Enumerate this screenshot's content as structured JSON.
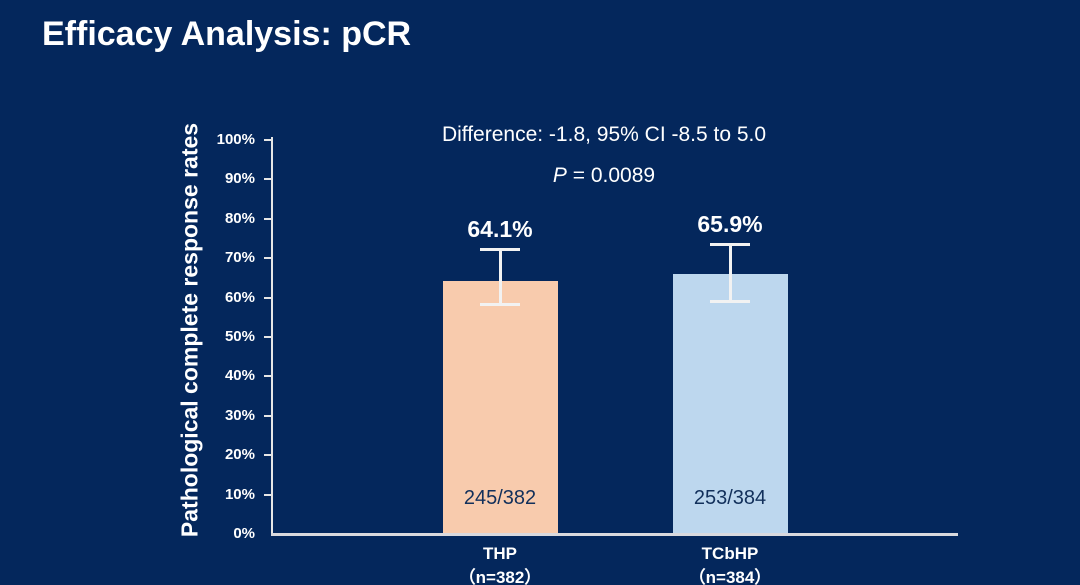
{
  "slide": {
    "title": "Efficacy Analysis: pCR"
  },
  "colors": {
    "background": "#04275C",
    "text": "#FFFFFF",
    "axis_line": "#E6E6E6",
    "error_bar": "#F2F2F2",
    "bar_thp": "#F8CBAD",
    "bar_tcbhp": "#BDD7EE",
    "count_label_text": "#12305B"
  },
  "chart_data": {
    "type": "bar",
    "title": "",
    "xlabel": "",
    "ylabel": "Pathological complete response rates",
    "ylim": [
      0,
      100
    ],
    "ytick_step": 10,
    "yticks": [
      "0%",
      "10%",
      "20%",
      "30%",
      "40%",
      "50%",
      "60%",
      "70%",
      "80%",
      "90%",
      "100%"
    ],
    "grid": false,
    "legend": null,
    "annotations": {
      "difference": "Difference: -1.8, 95% CI -8.5 to 5.0",
      "p_italic": "P",
      "p_text": " = 0.0089"
    },
    "categories": [
      "THP",
      "TCbHP"
    ],
    "bars": [
      {
        "category": "THP",
        "n_label": "（n=382）",
        "value_pct": 64.1,
        "value_label": "64.1%",
        "count_label": "245/382",
        "ci_low_pct": 58.3,
        "ci_high_pct": 72.2,
        "color": "#F8CBAD"
      },
      {
        "category": "TCbHP",
        "n_label": "（n=384）",
        "value_pct": 65.9,
        "value_label": "65.9%",
        "count_label": "253/384",
        "ci_low_pct": 59.0,
        "ci_high_pct": 73.4,
        "color": "#BDD7EE"
      }
    ]
  }
}
